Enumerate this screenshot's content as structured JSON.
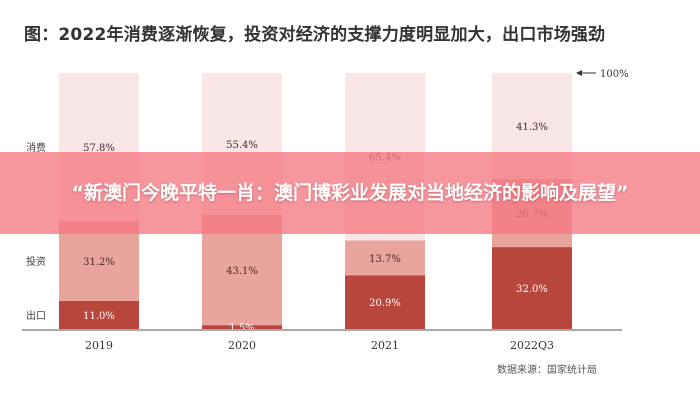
{
  "figure_title": "图：2022年消费逐渐恢复，投资对经济的支撑力度明显加大，出口市场强劲",
  "source_note": "数据来源：国家统计局",
  "banner_text": "“新澳门今晚平特一肖：澳门博彩业发展对当地经济的影响及展望”",
  "colors": {
    "consumption": "#f8e7e6",
    "investment": "#e9a49d",
    "export": "#b9463c",
    "banner": "#f47d87"
  },
  "chart_data": {
    "type": "bar",
    "stacked": true,
    "categories": [
      "2019",
      "2020",
      "2021",
      "2022Q3"
    ],
    "series": [
      {
        "name": "出口",
        "values": [
          11.0,
          1.5,
          20.9,
          32.0
        ],
        "labels": [
          "11.0%",
          "1.5%",
          "20.9%",
          "32.0%"
        ]
      },
      {
        "name": "投资",
        "values": [
          31.2,
          43.1,
          13.7,
          26.7
        ],
        "labels": [
          "31.2%",
          "43.1%",
          "13.7%",
          "26.7%"
        ]
      },
      {
        "name": "消费",
        "values": [
          57.8,
          55.4,
          65.4,
          41.3
        ],
        "labels": [
          "57.8%",
          "55.4%",
          "65.4%",
          "41.3%"
        ]
      }
    ],
    "ylim": [
      0,
      100
    ],
    "annotation": "100%",
    "grid": false
  }
}
